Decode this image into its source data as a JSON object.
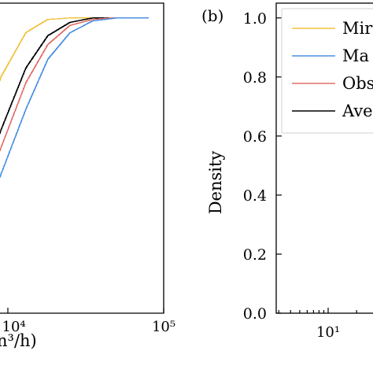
{
  "chart_data": [
    {
      "type": "line",
      "panel_label": "",
      "xscale": "log",
      "x_tick_labels": [
        {
          "text": "×10⁴",
          "x": 10000
        },
        {
          "text": "10⁵",
          "x": 100000
        }
      ],
      "xlabel": "n³/h)",
      "ylim": [
        0,
        1.05
      ],
      "series": [
        {
          "color": "#f0c23c",
          "points": [
            [
              700,
              0.02
            ],
            [
              2000,
              0.08
            ],
            [
              4000,
              0.25
            ],
            [
              6000,
              0.5
            ],
            [
              9000,
              0.8
            ],
            [
              13000,
              0.95
            ],
            [
              18000,
              0.995
            ],
            [
              25000,
              1.0
            ],
            [
              80000,
              1.0
            ]
          ]
        },
        {
          "color": "#000000",
          "points": [
            [
              700,
              0.01
            ],
            [
              2000,
              0.05
            ],
            [
              4000,
              0.17
            ],
            [
              6000,
              0.36
            ],
            [
              9000,
              0.62
            ],
            [
              13000,
              0.83
            ],
            [
              18000,
              0.94
            ],
            [
              25000,
              0.985
            ],
            [
              35000,
              1.0
            ],
            [
              80000,
              1.0
            ]
          ]
        },
        {
          "color": "#e0706a",
          "points": [
            [
              700,
              0.01
            ],
            [
              2000,
              0.04
            ],
            [
              4000,
              0.14
            ],
            [
              6000,
              0.31
            ],
            [
              9000,
              0.56
            ],
            [
              13000,
              0.78
            ],
            [
              18000,
              0.91
            ],
            [
              25000,
              0.975
            ],
            [
              35000,
              0.995
            ],
            [
              45000,
              1.0
            ],
            [
              80000,
              1.0
            ]
          ]
        },
        {
          "color": "#4a90e2",
          "points": [
            [
              700,
              0.01
            ],
            [
              2000,
              0.03
            ],
            [
              4000,
              0.1
            ],
            [
              6000,
              0.24
            ],
            [
              9000,
              0.47
            ],
            [
              13000,
              0.69
            ],
            [
              18000,
              0.86
            ],
            [
              25000,
              0.95
            ],
            [
              35000,
              0.99
            ],
            [
              50000,
              1.0
            ],
            [
              80000,
              1.0
            ]
          ]
        }
      ]
    },
    {
      "type": "line",
      "panel_label": "(b)",
      "xscale": "log",
      "ylabel": "Density",
      "ylim": [
        0,
        1.05
      ],
      "y_ticks": [
        0.0,
        0.2,
        0.4,
        0.6,
        0.8,
        1.0
      ],
      "y_tick_labels": [
        "0.0",
        "0.2",
        "0.4",
        "0.6",
        "0.8",
        "1.0"
      ],
      "x_tick_labels": [
        {
          "text": "10¹",
          "x": 10
        }
      ],
      "legend": {
        "placement": "top-right",
        "entries": [
          {
            "label": "Mir",
            "color": "#f0c23c"
          },
          {
            "label": "Ma",
            "color": "#4a90e2"
          },
          {
            "label": "Obs",
            "color": "#e0706a"
          },
          {
            "label": "Ave",
            "color": "#000000"
          }
        ]
      }
    }
  ]
}
